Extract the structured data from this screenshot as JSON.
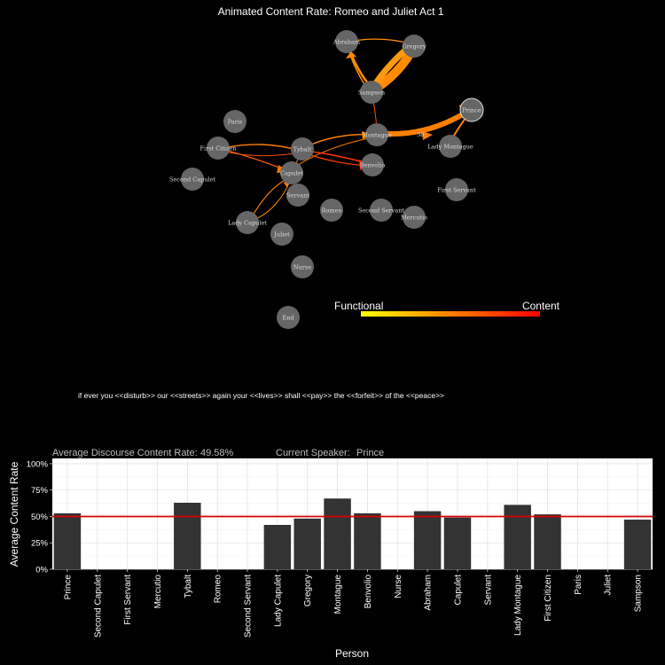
{
  "title": "Animated Content Rate: Romeo and Juliet Act 1",
  "network": {
    "nodes": [
      {
        "name": "Abraham"
      },
      {
        "name": "Gregory"
      },
      {
        "name": "Sampson"
      },
      {
        "name": "Prince"
      },
      {
        "name": "Paris"
      },
      {
        "name": "Montague"
      },
      {
        "name": "Lady Montague"
      },
      {
        "name": "First Citizen"
      },
      {
        "name": "Tybalt"
      },
      {
        "name": "Benvolio"
      },
      {
        "name": "Capulet"
      },
      {
        "name": "Second Capulet"
      },
      {
        "name": "First Servant"
      },
      {
        "name": "Servant"
      },
      {
        "name": "Lady Capulet"
      },
      {
        "name": "Romeo"
      },
      {
        "name": "Second Servant"
      },
      {
        "name": "Mercutio"
      },
      {
        "name": "Juliet"
      },
      {
        "name": "Nurse"
      },
      {
        "name": "End"
      }
    ],
    "edge_label": "38",
    "highlight_color": "#ff8c00"
  },
  "legend": {
    "low_label": "Functional",
    "high_label": "Content",
    "colors": [
      "#ffff00",
      "#ff8000",
      "#ff0000"
    ]
  },
  "quote": "if ever you <<disturb>> our <<streets>> again your <<lives>> shall <<pay>> the <<forfeit>> of the <<peace>>",
  "status": {
    "rate_label": "Average Discourse Content Rate:",
    "rate_value": "49.58%",
    "speaker_label": "Current Speaker:",
    "speaker_value": "Prince"
  },
  "chart_data": {
    "type": "bar",
    "xlabel": "Person",
    "ylabel": "Average Content Rate",
    "ylim": [
      0,
      1.05
    ],
    "yticks": [
      "0%",
      "25%",
      "50%",
      "75%",
      "100%"
    ],
    "reference_line": 0.5,
    "reference_color": "#dd0000",
    "bar_color": "#333333",
    "categories": [
      "Prince",
      "Second Capulet",
      "First Servant",
      "Mercutio",
      "Tybalt",
      "Romeo",
      "Second Servant",
      "Lady Capulet",
      "Gregory",
      "Montague",
      "Benvolio",
      "Nurse",
      "Abraham",
      "Capulet",
      "Servant",
      "Lady Montague",
      "First Citizen",
      "Paris",
      "Juliet",
      "Sampson"
    ],
    "values": [
      0.53,
      0,
      0,
      0,
      0.63,
      0,
      0,
      0.42,
      0.48,
      0.67,
      0.53,
      0,
      0.55,
      0.49,
      0,
      0.61,
      0.52,
      0,
      0,
      0.47
    ]
  }
}
